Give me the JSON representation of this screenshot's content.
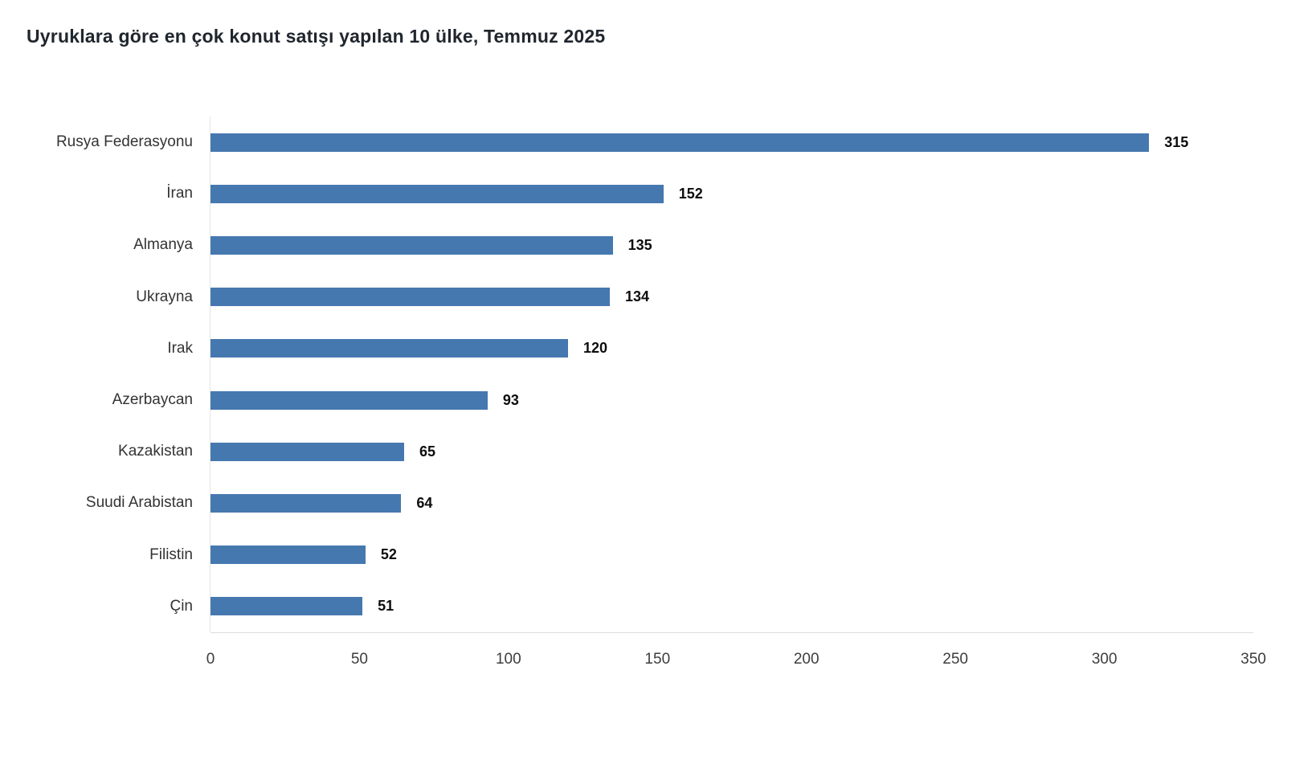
{
  "title": "Uyruklara göre en çok konut satışı yapılan 10 ülke, Temmuz 2025",
  "chart_data": {
    "type": "bar",
    "orientation": "horizontal",
    "title": "Uyruklara göre en çok konut satışı yapılan 10 ülke, Temmuz 2025",
    "categories": [
      "Rusya Federasyonu",
      "İran",
      "Almanya",
      "Ukrayna",
      "Irak",
      "Azerbaycan",
      "Kazakistan",
      "Suudi Arabistan",
      "Filistin",
      "Çin"
    ],
    "values": [
      315,
      152,
      135,
      134,
      120,
      93,
      65,
      64,
      52,
      51
    ],
    "xlabel": "",
    "ylabel": "",
    "xlim": [
      0,
      350
    ],
    "xticks": [
      0,
      50,
      100,
      150,
      200,
      250,
      300,
      350
    ],
    "grid": false,
    "legend": "none",
    "value_labels": true,
    "bar_color": "#4678b0",
    "axis_line_color": "#dddddd",
    "title_color": "#20262e",
    "label_color": "#333333",
    "value_label_color": "#0d0d0d",
    "background_color": "#ffffff"
  }
}
